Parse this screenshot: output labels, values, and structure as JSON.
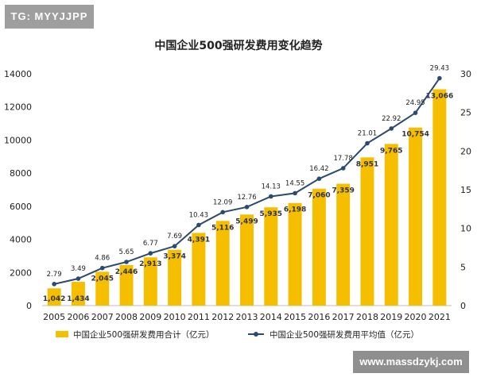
{
  "watermark_top": "TG: MYYJJPP",
  "watermark_bottom": "www.massdzykj.com",
  "chart_data": {
    "type": "bar",
    "title": "中国企业500强研发费用变化趋势",
    "categories": [
      "2005",
      "2006",
      "2007",
      "2008",
      "2009",
      "2010",
      "2011",
      "2012",
      "2013",
      "2014",
      "2015",
      "2016",
      "2017",
      "2018",
      "2019",
      "2020",
      "2021"
    ],
    "series": [
      {
        "name": "中国企业500强研发费用合计（亿元）",
        "type": "bar",
        "axis": "left",
        "color": "#f5bf00",
        "values": [
          1042,
          1434,
          2045,
          2446,
          2913,
          3374,
          4391,
          5116,
          5499,
          5935,
          6198,
          7060,
          7359,
          8951,
          9765,
          10754,
          13066
        ],
        "labels": [
          "1,042",
          "1,434",
          "2,045",
          "2,446",
          "2,913",
          "3,374",
          "4,391",
          "5,116",
          "5,499",
          "5,935",
          "6,198",
          "7,060",
          "7,359",
          "8,951",
          "9,765",
          "10,754",
          "13,066"
        ]
      },
      {
        "name": "中国企业500强研发费用平均值（亿元）",
        "type": "line",
        "axis": "right",
        "color": "#2b4a6f",
        "values": [
          2.79,
          3.49,
          4.86,
          5.65,
          6.77,
          7.69,
          10.43,
          12.09,
          12.76,
          14.13,
          14.55,
          16.42,
          17.78,
          21.01,
          22.92,
          24.95,
          29.43
        ],
        "labels": [
          "2.79",
          "3.49",
          "4.86",
          "5.65",
          "6.77",
          "7.69",
          "10.43",
          "12.09",
          "12.76",
          "14.13",
          "14.55",
          "16.42",
          "17.78",
          "21.01",
          "22.92",
          "24.95",
          "29.43"
        ]
      }
    ],
    "left_axis": {
      "ylim": [
        0,
        14000
      ],
      "ticks": [
        "0",
        "2000",
        "4000",
        "6000",
        "8000",
        "10000",
        "12000",
        "14000"
      ]
    },
    "right_axis": {
      "ylim": [
        0,
        30
      ],
      "ticks": [
        "0",
        "5",
        "10",
        "15",
        "20",
        "25",
        "30"
      ]
    },
    "legend_position": "bottom"
  }
}
